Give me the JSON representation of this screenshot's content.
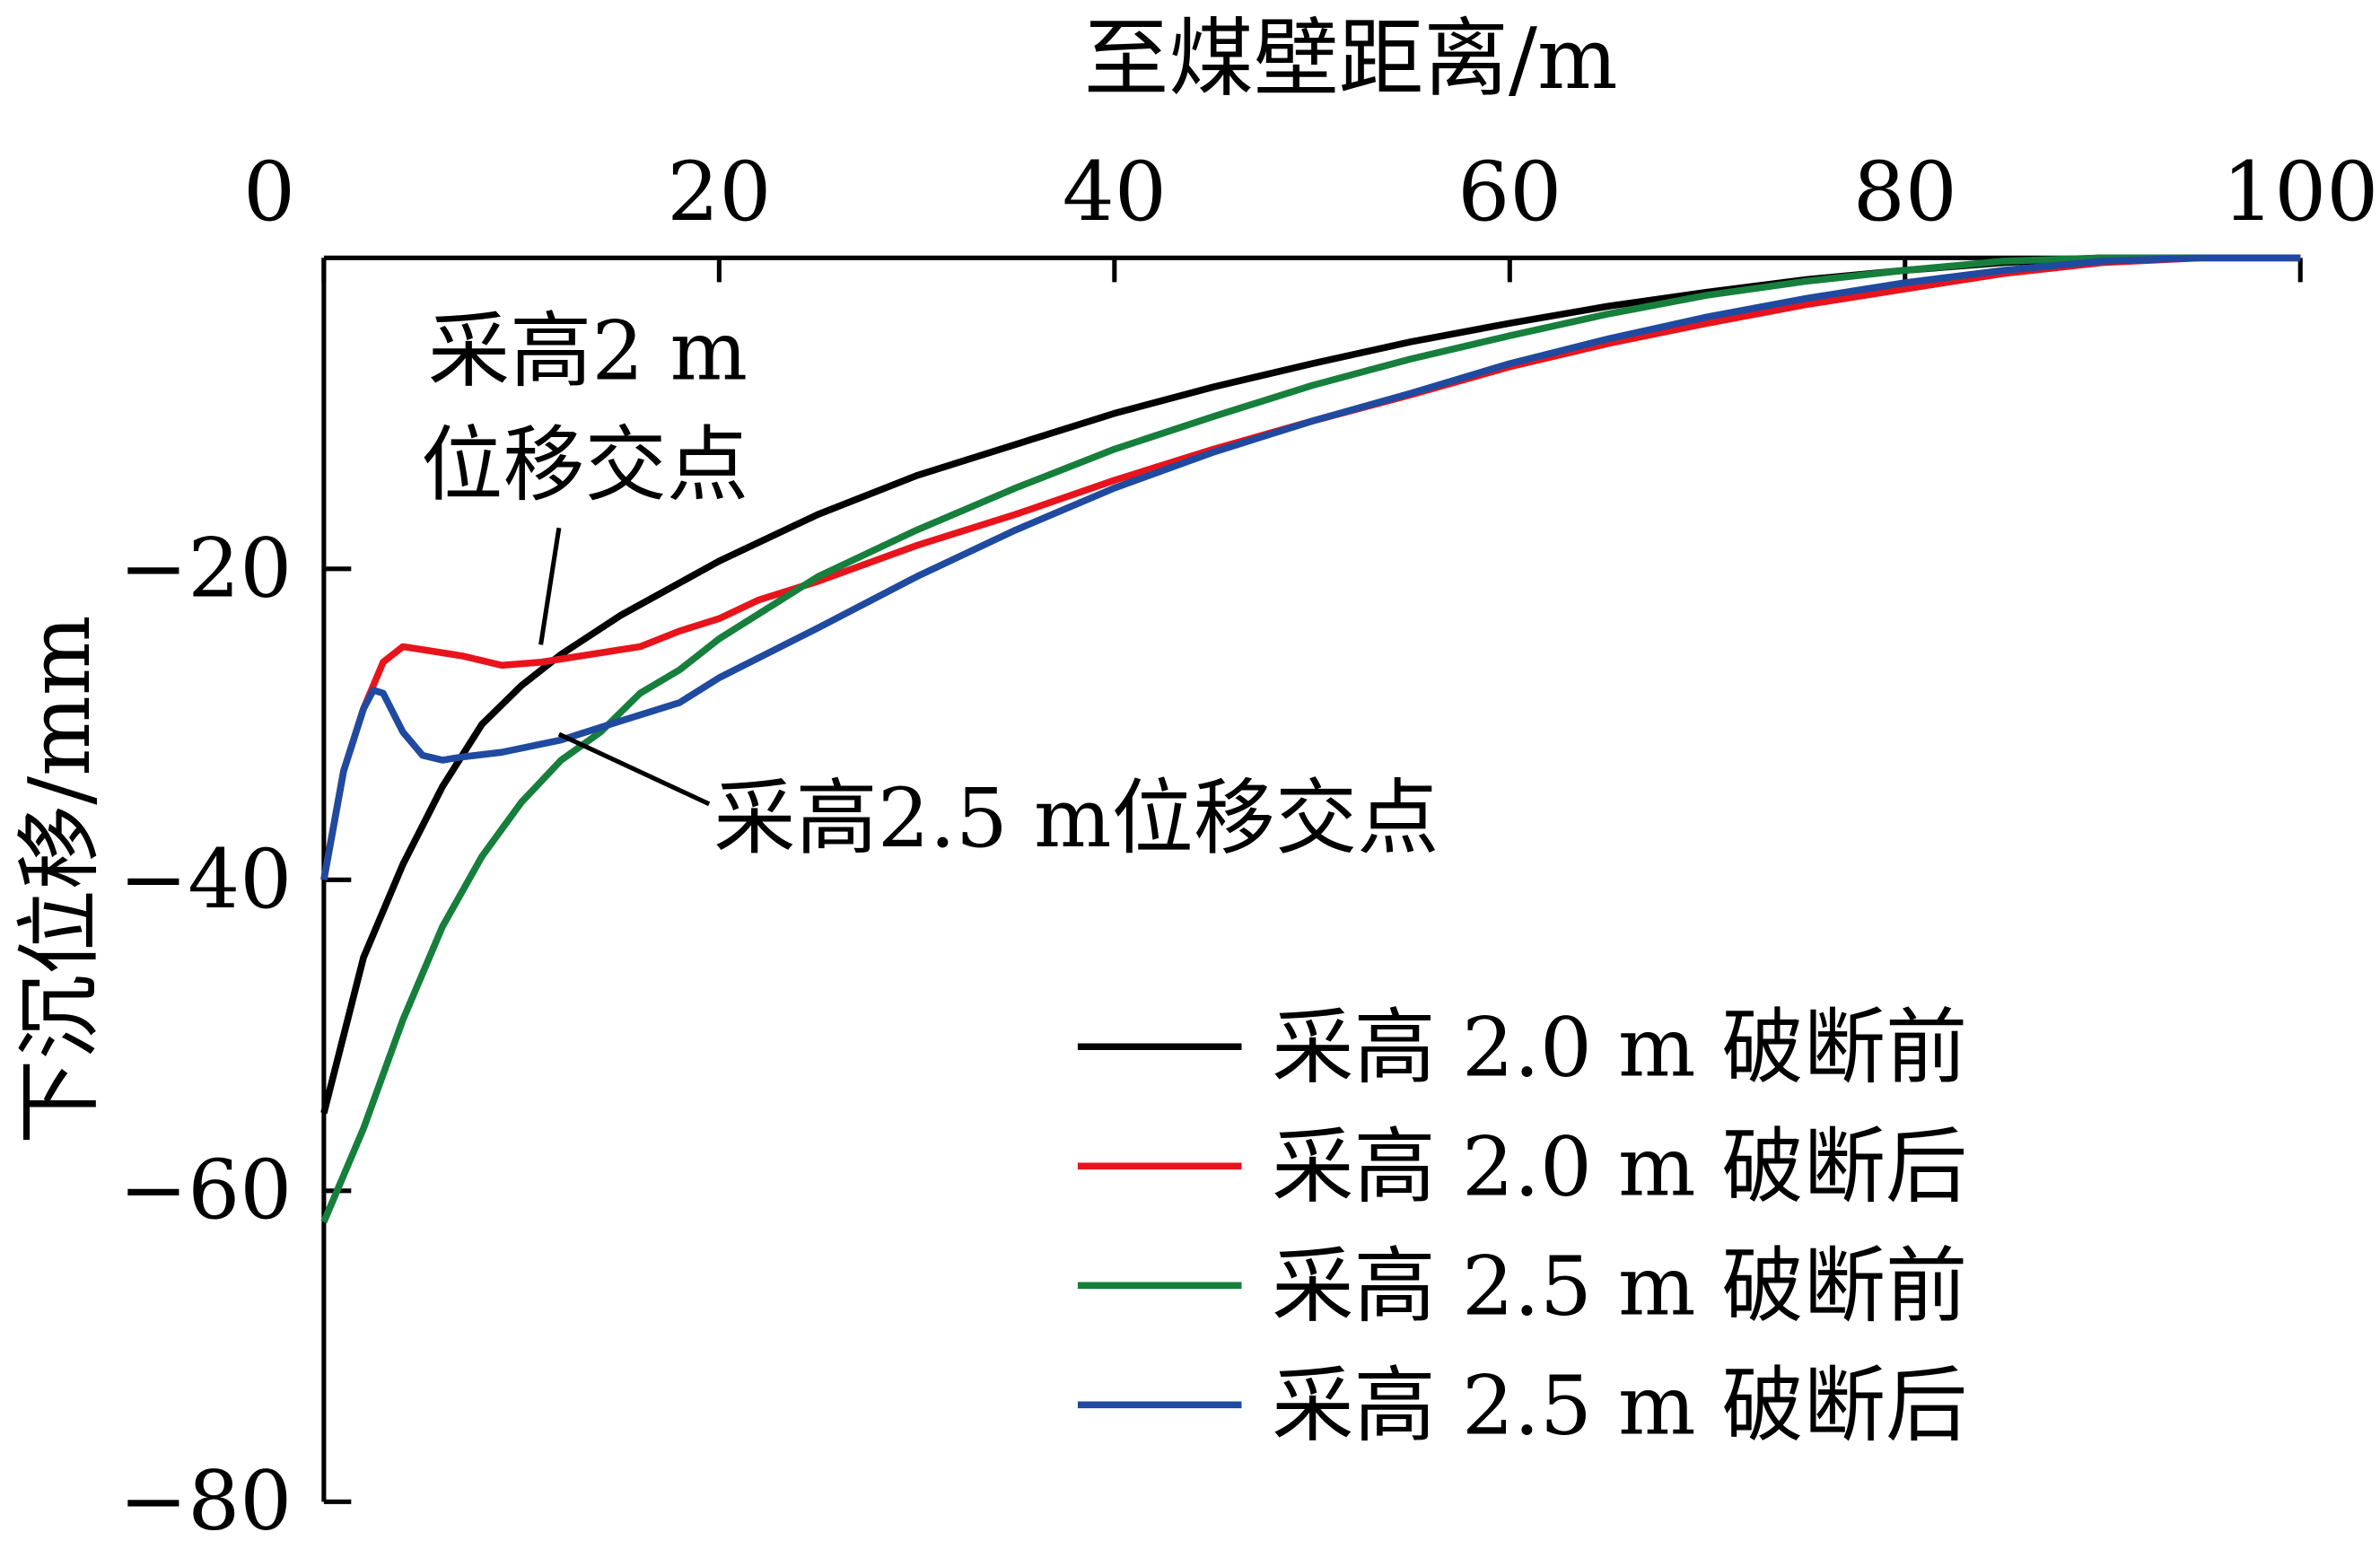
{
  "chart_data": {
    "type": "line",
    "xlabel": "至煤壁距离/m",
    "ylabel": "下沉位移/mm",
    "xlim": [
      0,
      100
    ],
    "ylim": [
      -80,
      0
    ],
    "xticks": [
      "0",
      "20",
      "40",
      "60",
      "80",
      "100"
    ],
    "xtick_values": [
      0,
      20,
      40,
      60,
      80,
      100
    ],
    "yticks": [
      "−20",
      "−40",
      "−60",
      "−80"
    ],
    "ytick_values": [
      -20,
      -40,
      -60,
      -80
    ],
    "x_axis_position": "top",
    "grid": false,
    "legend_placement": "bottom-right",
    "series": [
      {
        "name": "采高 2.0 m 破断前",
        "color": "#000000",
        "x": [
          0,
          2,
          4,
          6,
          8,
          10,
          12,
          15,
          20,
          25,
          30,
          35,
          40,
          45,
          50,
          55,
          60,
          65,
          70,
          75,
          80,
          85,
          90,
          100
        ],
        "y": [
          -55,
          -45,
          -39,
          -34,
          -30,
          -27.5,
          -25.5,
          -23,
          -19.5,
          -16.5,
          -14,
          -12,
          -10,
          -8.3,
          -6.8,
          -5.4,
          -4.2,
          -3.1,
          -2.2,
          -1.4,
          -0.8,
          -0.3,
          0,
          0
        ]
      },
      {
        "name": "采高 2.0 m 破断后",
        "color": "#e8141c",
        "x": [
          0,
          1,
          2,
          3,
          4,
          5,
          7,
          9,
          11,
          13,
          16,
          18,
          20,
          22,
          25,
          30,
          35,
          40,
          45,
          50,
          55,
          60,
          65,
          70,
          75,
          80,
          85,
          90,
          95,
          100
        ],
        "y": [
          -40,
          -33,
          -29,
          -26,
          -25,
          -25.2,
          -25.6,
          -26.2,
          -26,
          -25.6,
          -25,
          -24,
          -23.2,
          -22,
          -20.8,
          -18.5,
          -16.5,
          -14.3,
          -12.3,
          -10.5,
          -8.8,
          -7,
          -5.5,
          -4.2,
          -3,
          -2,
          -1,
          -0.3,
          0,
          0
        ]
      },
      {
        "name": "采高 2.5 m 破断前",
        "color": "#167f3c",
        "x": [
          0,
          2,
          4,
          6,
          8,
          10,
          12,
          14,
          16,
          18,
          20,
          25,
          30,
          35,
          40,
          45,
          50,
          55,
          60,
          65,
          70,
          75,
          80,
          85,
          90,
          100
        ],
        "y": [
          -62,
          -56,
          -49,
          -43,
          -38.5,
          -35,
          -32.3,
          -30.5,
          -28,
          -26.5,
          -24.5,
          -20.5,
          -17.5,
          -14.8,
          -12.3,
          -10.2,
          -8.2,
          -6.5,
          -5,
          -3.6,
          -2.4,
          -1.5,
          -0.8,
          -0.2,
          0,
          0
        ]
      },
      {
        "name": "采高 2.5 m 破断后",
        "color": "#1f4aa0",
        "x": [
          0,
          1,
          2,
          2.5,
          3,
          4,
          5,
          6,
          7,
          9,
          12,
          15,
          18,
          20,
          25,
          30,
          35,
          40,
          45,
          50,
          55,
          60,
          65,
          70,
          75,
          80,
          85,
          90,
          95,
          100
        ],
        "y": [
          -40,
          -33,
          -29,
          -27.8,
          -28,
          -30.5,
          -32,
          -32.3,
          -32.1,
          -31.8,
          -31,
          -29.8,
          -28.6,
          -27,
          -23.8,
          -20.5,
          -17.5,
          -14.8,
          -12.5,
          -10.5,
          -8.7,
          -6.8,
          -5.2,
          -3.8,
          -2.6,
          -1.6,
          -0.8,
          -0.2,
          0,
          0
        ]
      }
    ],
    "annotations": [
      {
        "lines": [
          "采高2 m",
          "位移交点"
        ],
        "x": 11,
        "y": -25.8
      },
      {
        "lines": [
          "采高2.5 m位移交点"
        ],
        "x": 12,
        "y": -30.5
      }
    ]
  }
}
